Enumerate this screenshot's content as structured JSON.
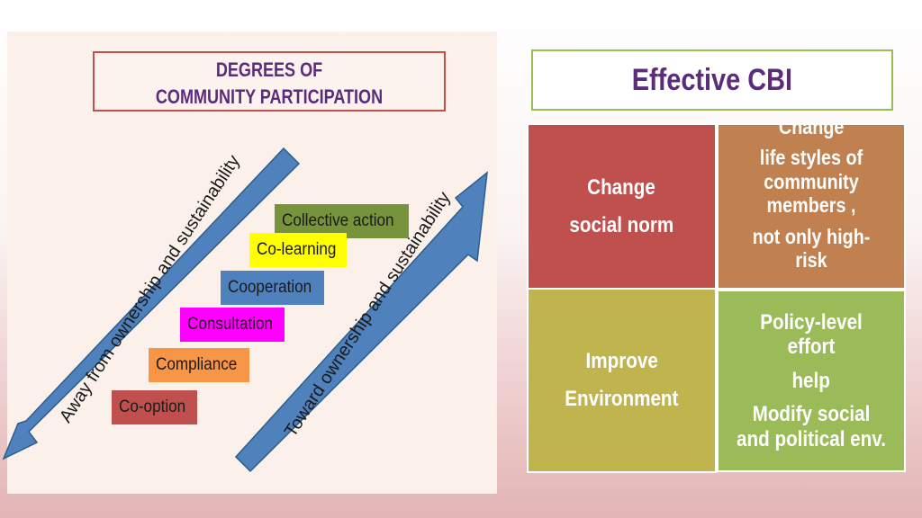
{
  "left": {
    "title_line1": "DEGREES OF",
    "title_line2": "COMMUNITY PARTICIPATION",
    "steps": [
      {
        "label": "Collective action",
        "color": "#77933c"
      },
      {
        "label": "Co-learning",
        "color": "#ffff00"
      },
      {
        "label": "Cooperation",
        "color": "#4f81bd"
      },
      {
        "label": "Consultation",
        "color": "#ff00ff"
      },
      {
        "label": "Compliance",
        "color": "#f79646"
      },
      {
        "label": "Co-option",
        "color": "#c0504d"
      }
    ],
    "away_label": "Away from ownership and sustainability",
    "toward_label": "Toward ownership and sustainability"
  },
  "right": {
    "title": "Effective CBI",
    "cells": {
      "top_left": {
        "lines": [
          "Change",
          "social norm"
        ],
        "color": "#c0504d"
      },
      "top_right": {
        "lines": [
          "Change",
          "life  styles of community members ,",
          "not only high-risk"
        ],
        "color": "#c0804f"
      },
      "bottom_left": {
        "lines": [
          "Improve",
          "Environment"
        ],
        "color": "#c0b44f"
      },
      "bottom_right": {
        "lines": [
          "Policy-level effort",
          "help",
          "Modify social and political env."
        ],
        "color": "#9bbb59"
      }
    }
  },
  "colors": {
    "arrow": "#4f81bd",
    "title_text": "#5b2c7a"
  }
}
